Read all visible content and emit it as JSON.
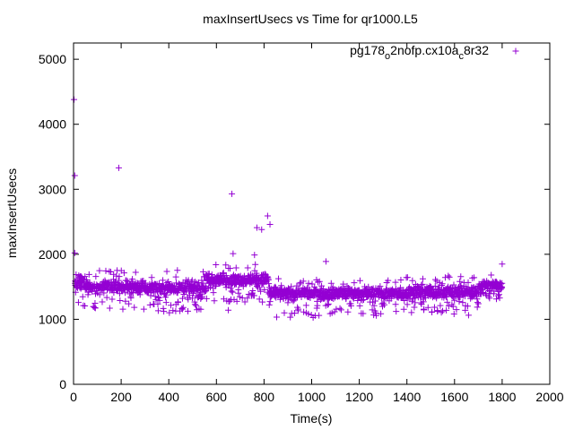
{
  "chart_data": {
    "type": "scatter",
    "title": "maxInsertUsecs vs Time for qr1000.L5",
    "xlabel": "Time(s)",
    "ylabel": "maxInsertUsecs",
    "xlim": [
      0,
      2000
    ],
    "ylim": [
      0,
      5250
    ],
    "xticks": [
      0,
      200,
      400,
      600,
      800,
      1000,
      1200,
      1400,
      1600,
      1800,
      2000
    ],
    "yticks": [
      0,
      1000,
      2000,
      3000,
      4000,
      5000
    ],
    "xtick_labels": [
      "0",
      "200",
      "400",
      "600",
      "800",
      "1000",
      "1200",
      "1400",
      "1600",
      "1800",
      "2000"
    ],
    "ytick_labels": [
      "0",
      "1000",
      "2000",
      "3000",
      "4000",
      "5000"
    ],
    "legend_position": "top-right",
    "marker_color": "#9400d3",
    "series": [
      {
        "name": "pg178_o2nofp.cx10a_c8r32",
        "legend_parts": [
          {
            "text": "pg178",
            "sub": false
          },
          {
            "text": "o",
            "sub": true
          },
          {
            "text": "2nofp.cx10a",
            "sub": false
          },
          {
            "text": "c",
            "sub": true
          },
          {
            "text": "8r32",
            "sub": false
          }
        ],
        "outliers": [
          {
            "x": 2,
            "y": 4380
          },
          {
            "x": 5,
            "y": 3210
          },
          {
            "x": 190,
            "y": 3330
          },
          {
            "x": 665,
            "y": 2930
          },
          {
            "x": 770,
            "y": 2410
          },
          {
            "x": 790,
            "y": 2380
          },
          {
            "x": 815,
            "y": 2590
          },
          {
            "x": 825,
            "y": 2460
          },
          {
            "x": 5,
            "y": 2020
          },
          {
            "x": 670,
            "y": 2010
          },
          {
            "x": 760,
            "y": 1990
          },
          {
            "x": 650,
            "y": 1140
          },
          {
            "x": 1060,
            "y": 1890
          },
          {
            "x": 1800,
            "y": 1850
          }
        ],
        "segments": [
          {
            "x_start": 5,
            "x_end": 60,
            "center": 1550,
            "spread": 300,
            "low_tail": 1200
          },
          {
            "x_start": 60,
            "x_end": 300,
            "center": 1500,
            "spread": 230,
            "low_tail": 1150
          },
          {
            "x_start": 300,
            "x_end": 560,
            "center": 1480,
            "spread": 250,
            "low_tail": 1100
          },
          {
            "x_start": 560,
            "x_end": 820,
            "center": 1610,
            "spread": 220,
            "low_tail": 1250
          },
          {
            "x_start": 820,
            "x_end": 1100,
            "center": 1400,
            "spread": 230,
            "low_tail": 1020
          },
          {
            "x_start": 1100,
            "x_end": 1400,
            "center": 1400,
            "spread": 230,
            "low_tail": 1050
          },
          {
            "x_start": 1400,
            "x_end": 1700,
            "center": 1420,
            "spread": 240,
            "low_tail": 1050
          },
          {
            "x_start": 1700,
            "x_end": 1800,
            "center": 1520,
            "spread": 180,
            "low_tail": 1300
          }
        ]
      }
    ]
  }
}
